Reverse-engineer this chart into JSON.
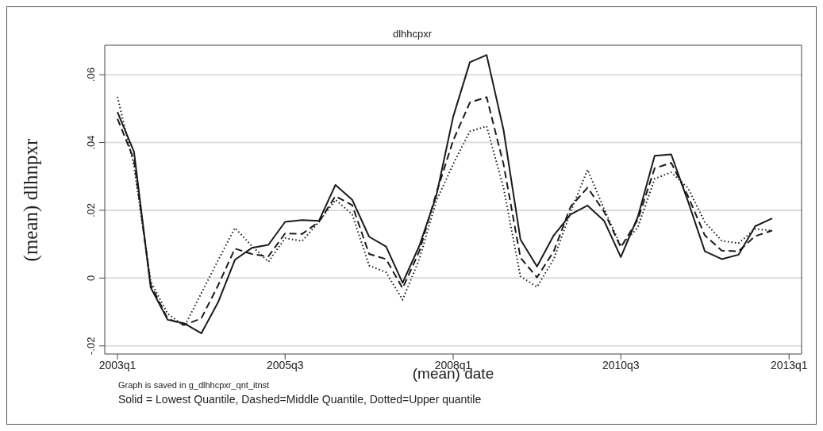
{
  "chart_data": {
    "type": "line",
    "title": "dlhhcpxr",
    "xlabel": "(mean) date",
    "ylabel": "(mean) dlhnpxr",
    "annotations": [
      "Graph is saved in g_dlhhcpxr_qnt_itnst",
      "Solid = Lowest Quantile, Dashed=Middle Quantile, Dotted=Upper quantile"
    ],
    "x": [
      "2003-01",
      "2003-04",
      "2003-07",
      "2003-10",
      "2004-01",
      "2004-04",
      "2004-07",
      "2004-10",
      "2005-01",
      "2005-04",
      "2005-07",
      "2005-10",
      "2006-01",
      "2006-04",
      "2006-07",
      "2006-10",
      "2007-01",
      "2007-04",
      "2007-07",
      "2007-10",
      "2008-01",
      "2008-04",
      "2008-07",
      "2008-10",
      "2009-01",
      "2009-04",
      "2009-07",
      "2009-10",
      "2010-01",
      "2010-04",
      "2010-07",
      "2010-10",
      "2011-01",
      "2011-04",
      "2011-07",
      "2011-10",
      "2012-01",
      "2012-04",
      "2012-07",
      "2012-10"
    ],
    "series": [
      {
        "color": "#1a1a1a",
        "line_style": "solid",
        "values": [
          0.049,
          0.0373,
          -0.0028,
          -0.0123,
          -0.0134,
          -0.0163,
          -0.0072,
          0.0054,
          0.0089,
          0.0098,
          0.0166,
          0.0171,
          0.0169,
          0.0275,
          0.0231,
          0.0122,
          0.0093,
          -0.0014,
          0.0095,
          0.0242,
          0.0476,
          0.0637,
          0.0658,
          0.0437,
          0.0114,
          0.0034,
          0.0126,
          0.0188,
          0.0214,
          0.0169,
          0.0062,
          0.018,
          0.0361,
          0.0365,
          0.0227,
          0.0079,
          0.0056,
          0.0069,
          0.0153,
          0.0176
        ]
      },
      {
        "color": "#1a1a1a",
        "line_style": "dashed",
        "values": [
          0.047,
          0.035,
          -0.002,
          -0.012,
          -0.0138,
          -0.0119,
          -0.0022,
          0.0087,
          0.0071,
          0.0064,
          0.0132,
          0.013,
          0.0166,
          0.0242,
          0.0215,
          0.0071,
          0.0056,
          -0.003,
          0.0079,
          0.025,
          0.0406,
          0.0518,
          0.0534,
          0.0336,
          0.006,
          0.0002,
          0.0079,
          0.0211,
          0.0267,
          0.0196,
          0.0091,
          0.0172,
          0.0324,
          0.034,
          0.0242,
          0.0126,
          0.0081,
          0.0079,
          0.0124,
          0.014
        ]
      },
      {
        "color": "#1a1a1a",
        "line_style": "dotted",
        "values": [
          0.0535,
          0.033,
          -0.001,
          -0.0105,
          -0.0142,
          -0.0045,
          0.0052,
          0.0148,
          0.0095,
          0.0048,
          0.0118,
          0.0109,
          0.0166,
          0.0231,
          0.0188,
          0.0037,
          0.0017,
          -0.0064,
          0.0056,
          0.0227,
          0.0336,
          0.0433,
          0.0448,
          0.0266,
          0.0005,
          -0.0026,
          0.0056,
          0.0196,
          0.032,
          0.0204,
          0.0095,
          0.0149,
          0.0293,
          0.0312,
          0.0266,
          0.0165,
          0.011,
          0.0103,
          0.0145,
          0.014
        ]
      }
    ],
    "xlim": [
      "2002-10-24",
      "2013-03-10"
    ],
    "xticks": [
      {
        "value": "2003-01",
        "label": "2003q1"
      },
      {
        "value": "2005-07",
        "label": "2005q3"
      },
      {
        "value": "2008-01",
        "label": "2008q1"
      },
      {
        "value": "2010-07",
        "label": "2010q3"
      },
      {
        "value": "2013-01",
        "label": "2013q1"
      }
    ],
    "ylim": [
      -0.0224,
      0.0687
    ],
    "yticks": [
      {
        "value": -0.02,
        "label": "-.02"
      },
      {
        "value": 0,
        "label": "0"
      },
      {
        "value": 0.02,
        "label": ".02"
      },
      {
        "value": 0.04,
        "label": ".04"
      },
      {
        "value": 0.06,
        "label": ".06"
      }
    ],
    "grid": "y",
    "legend": false,
    "marker": "none"
  }
}
